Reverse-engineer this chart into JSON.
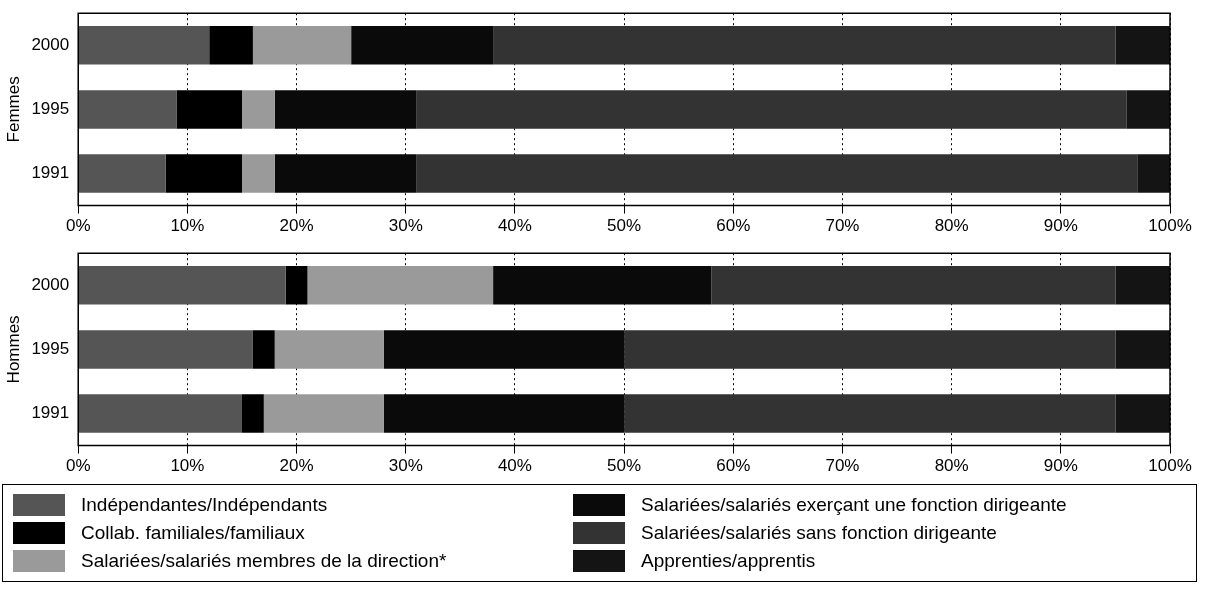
{
  "chart_data": [
    {
      "type": "bar",
      "orientation": "horizontal",
      "stacked": true,
      "ylabel": "Femmes",
      "categories": [
        "2000",
        "1995",
        "1991"
      ],
      "xlim": [
        0,
        100
      ],
      "xticks": [
        {
          "value": 0,
          "label": "0%"
        },
        {
          "value": 10,
          "label": "10%"
        },
        {
          "value": 20,
          "label": "20%"
        },
        {
          "value": 30,
          "label": "30%"
        },
        {
          "value": 40,
          "label": "40%"
        },
        {
          "value": 50,
          "label": "50%"
        },
        {
          "value": 60,
          "label": "60%"
        },
        {
          "value": 70,
          "label": "70%"
        },
        {
          "value": 80,
          "label": "80%"
        },
        {
          "value": 90,
          "label": "90%"
        },
        {
          "value": 100,
          "label": "100%"
        }
      ],
      "grid": "x",
      "legend": "bottom",
      "series": [
        {
          "name": "Indépendantes/Indépendants",
          "color": "#555555",
          "values": [
            12,
            9,
            8
          ]
        },
        {
          "name": "Collab. familiales/familiaux",
          "color": "#000000",
          "values": [
            4,
            6,
            7
          ]
        },
        {
          "name": "Salariées/salariés membres de la direction*",
          "color": "#9a9a9a",
          "values": [
            9,
            3,
            3
          ]
        },
        {
          "name": "Salariées/salariés exerçant une fonction dirigeante",
          "color": "#0a0a0a",
          "values": [
            13,
            13,
            13
          ]
        },
        {
          "name": "Salariées/salariés sans fonction dirigeante",
          "color": "#333333",
          "values": [
            57,
            65,
            66
          ]
        },
        {
          "name": "Apprenties/apprentis",
          "color": "#141414",
          "values": [
            5,
            4,
            3
          ]
        }
      ]
    },
    {
      "type": "bar",
      "orientation": "horizontal",
      "stacked": true,
      "ylabel": "Hommes",
      "categories": [
        "2000",
        "1995",
        "1991"
      ],
      "xlim": [
        0,
        100
      ],
      "xticks": [
        {
          "value": 0,
          "label": "0%"
        },
        {
          "value": 10,
          "label": "10%"
        },
        {
          "value": 20,
          "label": "20%"
        },
        {
          "value": 30,
          "label": "30%"
        },
        {
          "value": 40,
          "label": "40%"
        },
        {
          "value": 50,
          "label": "50%"
        },
        {
          "value": 60,
          "label": "60%"
        },
        {
          "value": 70,
          "label": "70%"
        },
        {
          "value": 80,
          "label": "80%"
        },
        {
          "value": 90,
          "label": "90%"
        },
        {
          "value": 100,
          "label": "100%"
        }
      ],
      "grid": "x",
      "legend": "bottom",
      "series": [
        {
          "name": "Indépendantes/Indépendants",
          "color": "#555555",
          "values": [
            19,
            16,
            15
          ]
        },
        {
          "name": "Collab. familiales/familiaux",
          "color": "#000000",
          "values": [
            2,
            2,
            2
          ]
        },
        {
          "name": "Salariées/salariés membres de la direction*",
          "color": "#9a9a9a",
          "values": [
            17,
            10,
            11
          ]
        },
        {
          "name": "Salariées/salariés exerçant une fonction dirigeante",
          "color": "#0a0a0a",
          "values": [
            20,
            22,
            22
          ]
        },
        {
          "name": "Salariées/salariés sans fonction dirigeante",
          "color": "#333333",
          "values": [
            37,
            45,
            45
          ]
        },
        {
          "name": "Apprenties/apprentis",
          "color": "#141414",
          "values": [
            5,
            5,
            5
          ]
        }
      ]
    }
  ]
}
